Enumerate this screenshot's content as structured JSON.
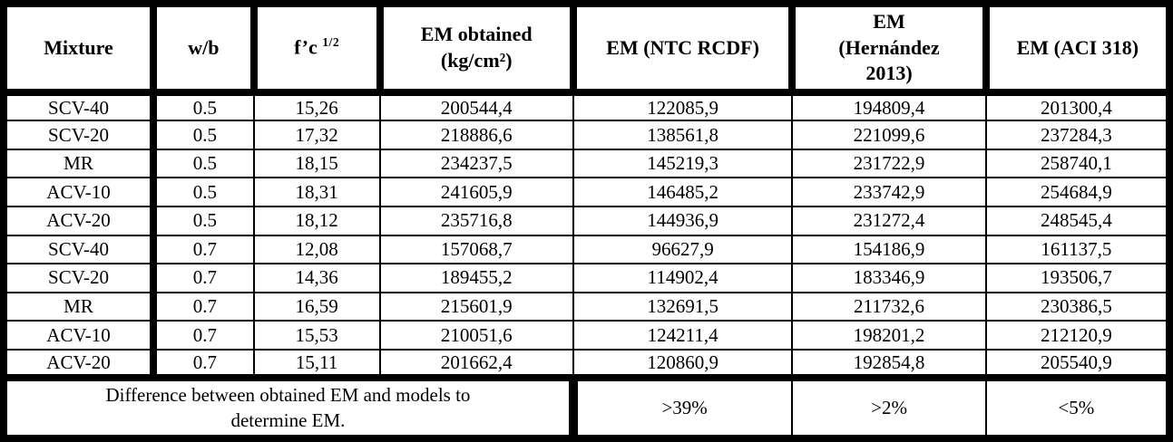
{
  "table": {
    "title_semantic": "EM comparison table",
    "columns": [
      {
        "lines": [
          "Mixture"
        ]
      },
      {
        "lines": [
          "w/b"
        ]
      },
      {
        "lines": [
          "f’c"
        ],
        "sup": "1/2"
      },
      {
        "lines": [
          "EM obtained",
          "(kg/cm²)"
        ]
      },
      {
        "lines": [
          "EM (NTC RCDF)"
        ]
      },
      {
        "lines": [
          "EM",
          "(Hernández",
          "2013)"
        ]
      },
      {
        "lines": [
          "EM (ACI 318)"
        ]
      }
    ],
    "rows": [
      [
        "SCV-40",
        "0.5",
        "15,26",
        "200544,4",
        "122085,9",
        "194809,4",
        "201300,4"
      ],
      [
        "SCV-20",
        "0.5",
        "17,32",
        "218886,6",
        "138561,8",
        "221099,6",
        "237284,3"
      ],
      [
        "MR",
        "0.5",
        "18,15",
        "234237,5",
        "145219,3",
        "231722,9",
        "258740,1"
      ],
      [
        "ACV-10",
        "0.5",
        "18,31",
        "241605,9",
        "146485,2",
        "233742,9",
        "254684,9"
      ],
      [
        "ACV-20",
        "0.5",
        "18,12",
        "235716,8",
        "144936,9",
        "231272,4",
        "248545,4"
      ],
      [
        "SCV-40",
        "0.7",
        "12,08",
        "157068,7",
        "96627,9",
        "154186,9",
        "161137,5"
      ],
      [
        "SCV-20",
        "0.7",
        "14,36",
        "189455,2",
        "114902,4",
        "183346,9",
        "193506,7"
      ],
      [
        "MR",
        "0.7",
        "16,59",
        "215601,9",
        "132691,5",
        "211732,6",
        "230386,5"
      ],
      [
        "ACV-10",
        "0.7",
        "15,53",
        "210051,6",
        "124211,4",
        "198201,2",
        "212120,9"
      ],
      [
        "ACV-20",
        "0.7",
        "15,11",
        "201662,4",
        "120860,9",
        "192854,8",
        "205540,9"
      ]
    ],
    "footer": {
      "note_lines": [
        "Difference between obtained EM and models to",
        "determine EM."
      ],
      "values": [
        ">39%",
        ">2%",
        "<5%"
      ]
    }
  },
  "colors": {
    "border": "#000000",
    "background": "#ffffff",
    "text": "#000000"
  }
}
